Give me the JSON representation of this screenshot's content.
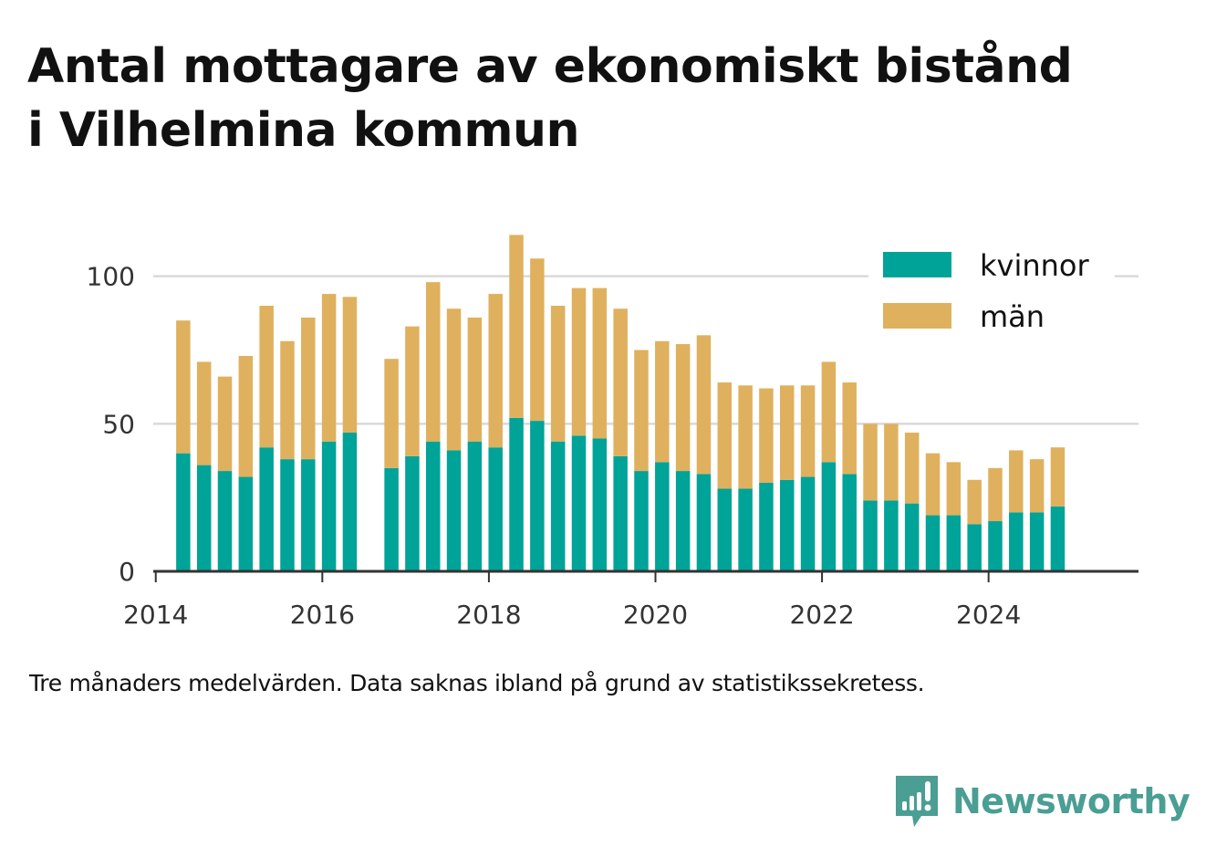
{
  "title_lines": [
    "Antal mottagare av ekonomiskt bistånd",
    "i Vilhelmina kommun"
  ],
  "caption": "Tre månaders medelvärden. Data saknas ibland på grund av statistikssekretess.",
  "brand": {
    "name": "Newsworthy",
    "icon": "newsworthy-logo-icon",
    "color": "#4a9e93"
  },
  "chart_data": {
    "type": "bar",
    "stacked": true,
    "xlim": [
      2013.97,
      2025.8
    ],
    "ylim": [
      0,
      120
    ],
    "yticks": [
      0,
      50,
      100
    ],
    "xticks": [
      2014,
      2016,
      2018,
      2020,
      2022,
      2024
    ],
    "grid": "horizontal",
    "legend_position": "top-right",
    "x": [
      2014.33,
      2014.58,
      2014.83,
      2015.08,
      2015.33,
      2015.58,
      2015.83,
      2016.08,
      2016.33,
      2016.83,
      2017.08,
      2017.33,
      2017.58,
      2017.83,
      2018.08,
      2018.33,
      2018.58,
      2018.83,
      2019.08,
      2019.33,
      2019.58,
      2019.83,
      2020.08,
      2020.33,
      2020.58,
      2020.83,
      2021.08,
      2021.33,
      2021.58,
      2021.83,
      2022.08,
      2022.33,
      2022.58,
      2022.83,
      2023.08,
      2023.33,
      2023.58,
      2023.83,
      2024.08,
      2024.33,
      2024.58,
      2024.83
    ],
    "series": [
      {
        "name": "kvinnor",
        "color": "#00a398",
        "values": [
          40,
          36,
          34,
          32,
          42,
          38,
          38,
          44,
          47,
          35,
          39,
          44,
          41,
          44,
          42,
          52,
          51,
          44,
          46,
          45,
          39,
          34,
          37,
          34,
          33,
          28,
          28,
          30,
          31,
          32,
          37,
          33,
          24,
          24,
          23,
          19,
          19,
          16,
          17,
          20,
          20,
          22
        ]
      },
      {
        "name": "män",
        "color": "#dfb15e",
        "values": [
          45,
          35,
          32,
          41,
          48,
          40,
          48,
          50,
          46,
          37,
          44,
          54,
          48,
          42,
          52,
          62,
          55,
          46,
          50,
          51,
          50,
          41,
          41,
          43,
          47,
          36,
          35,
          32,
          32,
          31,
          34,
          31,
          26,
          26,
          24,
          21,
          18,
          15,
          18,
          21,
          18,
          20
        ]
      }
    ]
  }
}
